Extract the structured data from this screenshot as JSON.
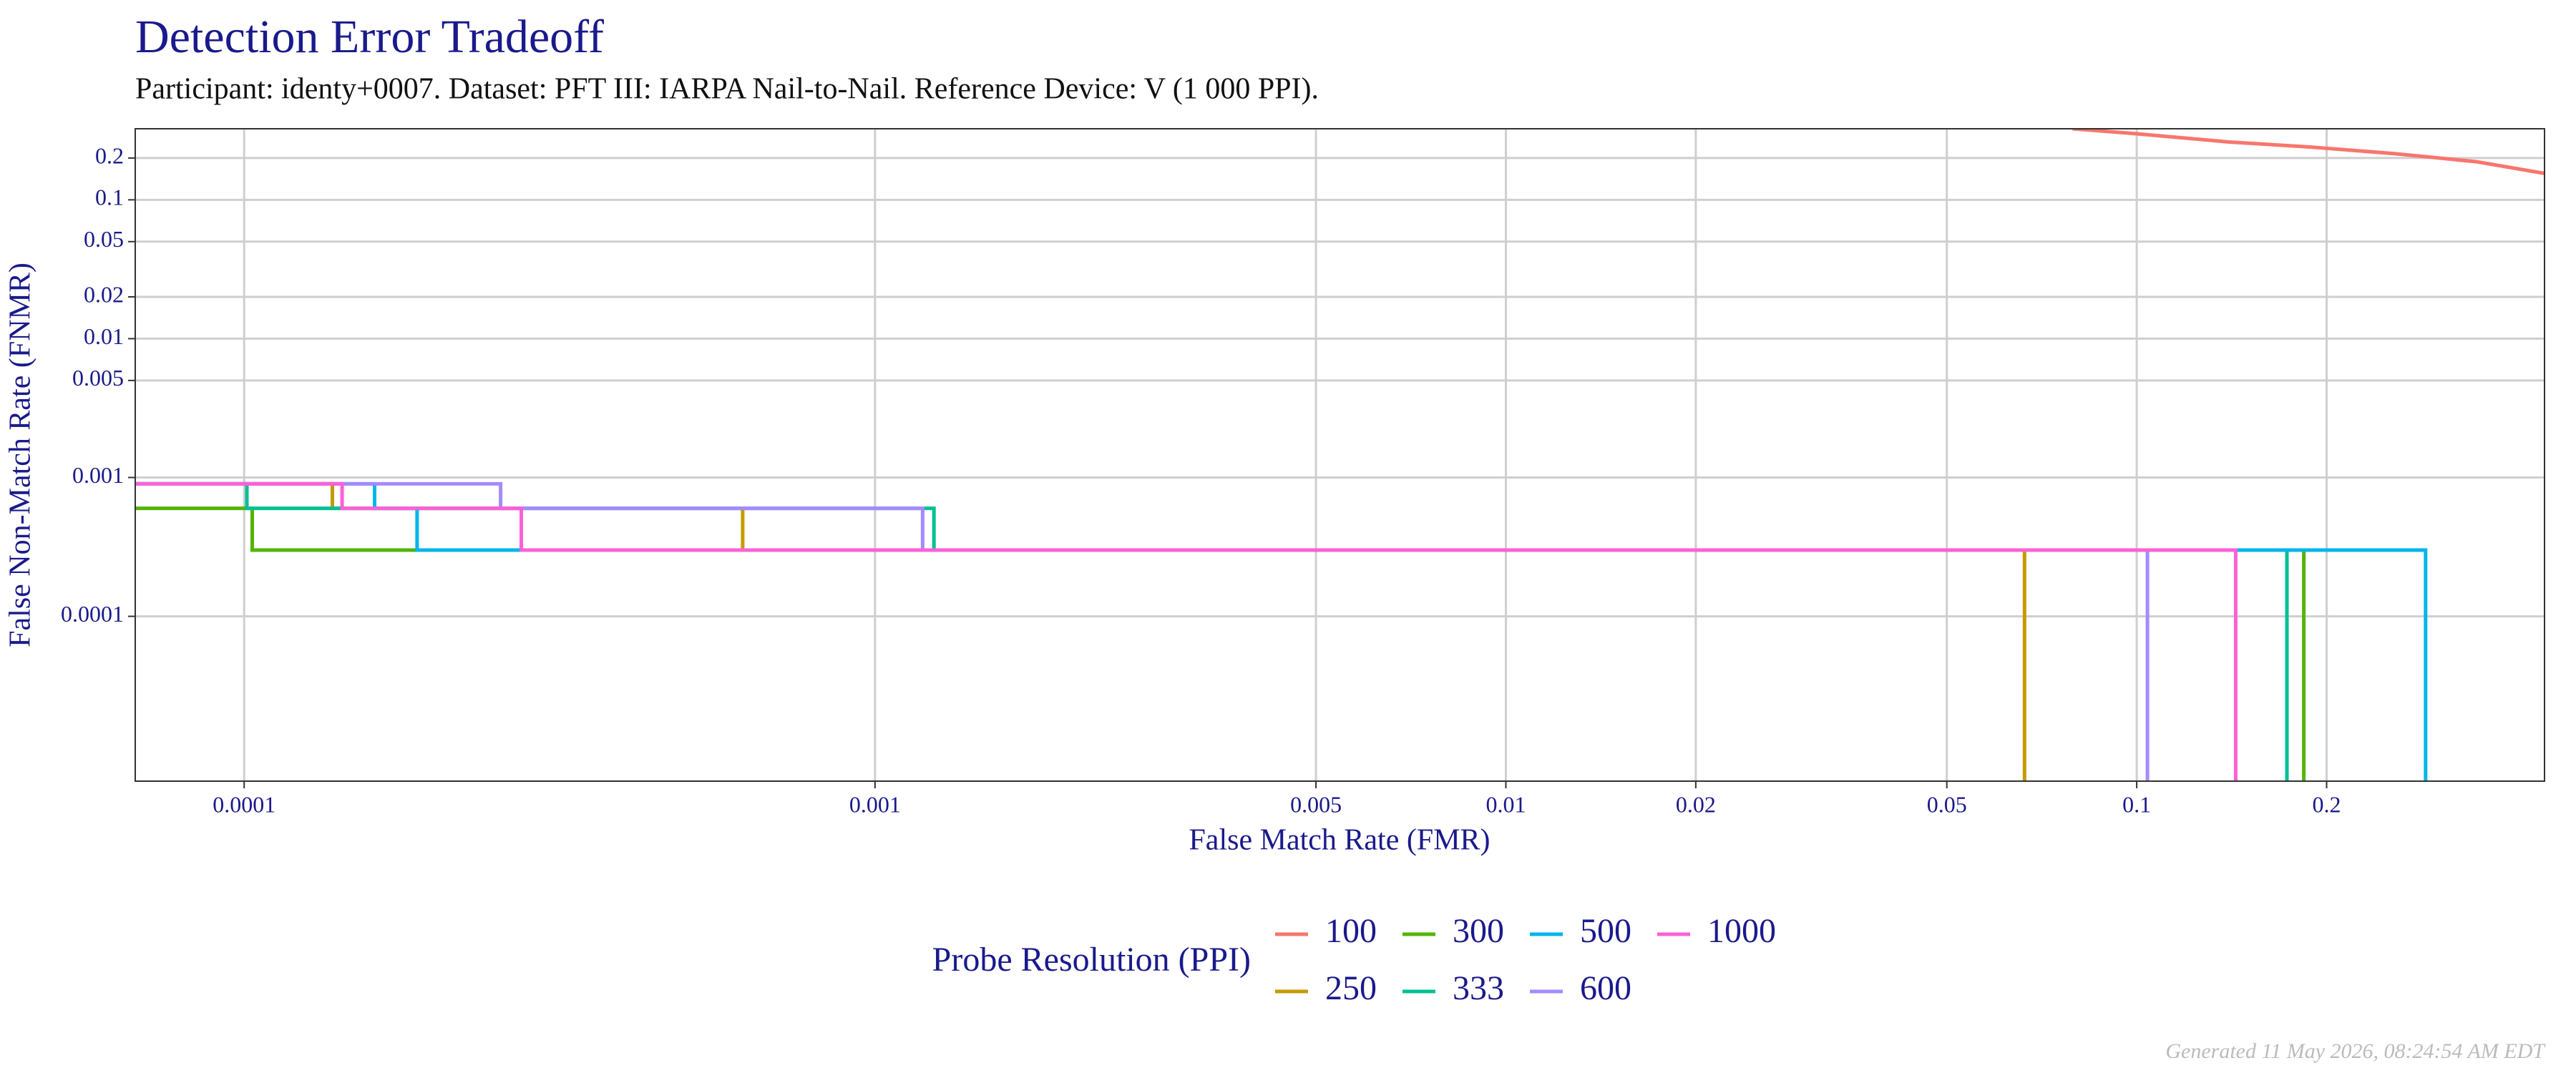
{
  "chart_data": {
    "type": "line",
    "title": "Detection Error Tradeoff",
    "subtitle": "Participant: identy+0007. Dataset: PFT III: IARPA Nail-to-Nail. Reference Device: V (1 000 PPI).",
    "x_label": "False Match Rate (FMR)",
    "y_label": "False Non-Match Rate (FNMR)",
    "legend_title": "Probe Resolution (PPI)",
    "footer": "Generated 11 May 2026, 08:24:54 AM EDT",
    "x_log": true,
    "y_log": true,
    "grid": true,
    "legend": "bottom",
    "xlim": [
      6.72e-05,
      0.443
    ],
    "ylim": [
      6.5e-06,
      0.325
    ],
    "xticks": [
      0.0001,
      0.001,
      0.005,
      0.01,
      0.02,
      0.05,
      0.1,
      0.2
    ],
    "yticks": [
      0.0001,
      0.001,
      0.005,
      0.01,
      0.02,
      0.05,
      0.1,
      0.2
    ],
    "series": [
      {
        "name": "100",
        "color": "#F8766D",
        "x": [
          0.0791,
          0.1,
          0.14,
          0.189,
          0.256,
          0.346,
          0.443
        ],
        "values": [
          0.325,
          0.299,
          0.261,
          0.24,
          0.215,
          0.188,
          0.155
        ]
      },
      {
        "name": "250",
        "color": "#C49A00",
        "x": [
          6.72e-05,
          0.000138,
          0.000138,
          0.000617,
          0.000617,
          0.0664,
          0.0664
        ],
        "values": [
          0.0009,
          0.0009,
          0.0006,
          0.0006,
          0.0003,
          0.0003,
          6.5e-06
        ]
      },
      {
        "name": "300",
        "color": "#53B400",
        "x": [
          6.72e-05,
          0.000103,
          0.000103,
          0.184,
          0.184
        ],
        "values": [
          0.0006,
          0.0006,
          0.0003,
          0.0003,
          6.5e-06
        ]
      },
      {
        "name": "333",
        "color": "#00C094",
        "x": [
          6.72e-05,
          0.000101,
          0.000101,
          0.00124,
          0.00124,
          0.173,
          0.173
        ],
        "values": [
          0.0009,
          0.0009,
          0.0006,
          0.0006,
          0.0003,
          0.0003,
          6.5e-06
        ]
      },
      {
        "name": "500",
        "color": "#00B6EB",
        "x": [
          6.72e-05,
          0.000161,
          0.000161,
          0.000188,
          0.000188,
          0.287,
          0.287
        ],
        "values": [
          0.0009,
          0.0009,
          0.0006,
          0.0006,
          0.0003,
          0.0003,
          6.5e-06
        ]
      },
      {
        "name": "600",
        "color": "#A58AFF",
        "x": [
          6.72e-05,
          0.000255,
          0.000255,
          0.00119,
          0.00119,
          0.104,
          0.104
        ],
        "values": [
          0.0009,
          0.0009,
          0.0006,
          0.0006,
          0.0003,
          0.0003,
          6.5e-06
        ]
      },
      {
        "name": "1000",
        "color": "#FB61D7",
        "x": [
          6.72e-05,
          0.000143,
          0.000143,
          0.000275,
          0.000275,
          0.1435,
          0.1435
        ],
        "values": [
          0.0009,
          0.0009,
          0.0006,
          0.0006,
          0.0003,
          0.0003,
          6.5e-06
        ]
      }
    ]
  }
}
